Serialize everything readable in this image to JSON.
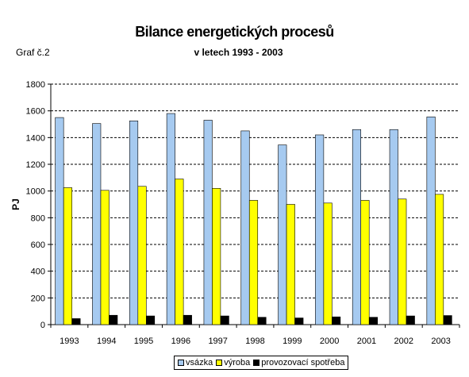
{
  "title": "Bilance energetických procesů",
  "graf_label": "Graf č.2",
  "subtitle": "v letech 1993 - 2003",
  "chart_data": {
    "type": "bar",
    "categories": [
      "1993",
      "1994",
      "1995",
      "1996",
      "1997",
      "1998",
      "1999",
      "2000",
      "2001",
      "2002",
      "2003"
    ],
    "ylabel": "PJ",
    "ylim": [
      0,
      1800
    ],
    "yticks": [
      0,
      200,
      400,
      600,
      800,
      1000,
      1200,
      1400,
      1600,
      1800
    ],
    "grid": true,
    "legend_position": "bottom",
    "series": [
      {
        "name": "vsázka",
        "color": "#a6caf0",
        "values": [
          1550,
          1505,
          1525,
          1580,
          1530,
          1450,
          1345,
          1420,
          1460,
          1460,
          1555
        ]
      },
      {
        "name": "výroba",
        "color": "#ffff00",
        "values": [
          1025,
          1005,
          1035,
          1090,
          1020,
          930,
          900,
          910,
          930,
          940,
          975
        ]
      },
      {
        "name": "provozovací spotřeba",
        "color": "#000000",
        "values": [
          45,
          70,
          65,
          70,
          65,
          55,
          50,
          58,
          55,
          65,
          68
        ]
      }
    ]
  }
}
